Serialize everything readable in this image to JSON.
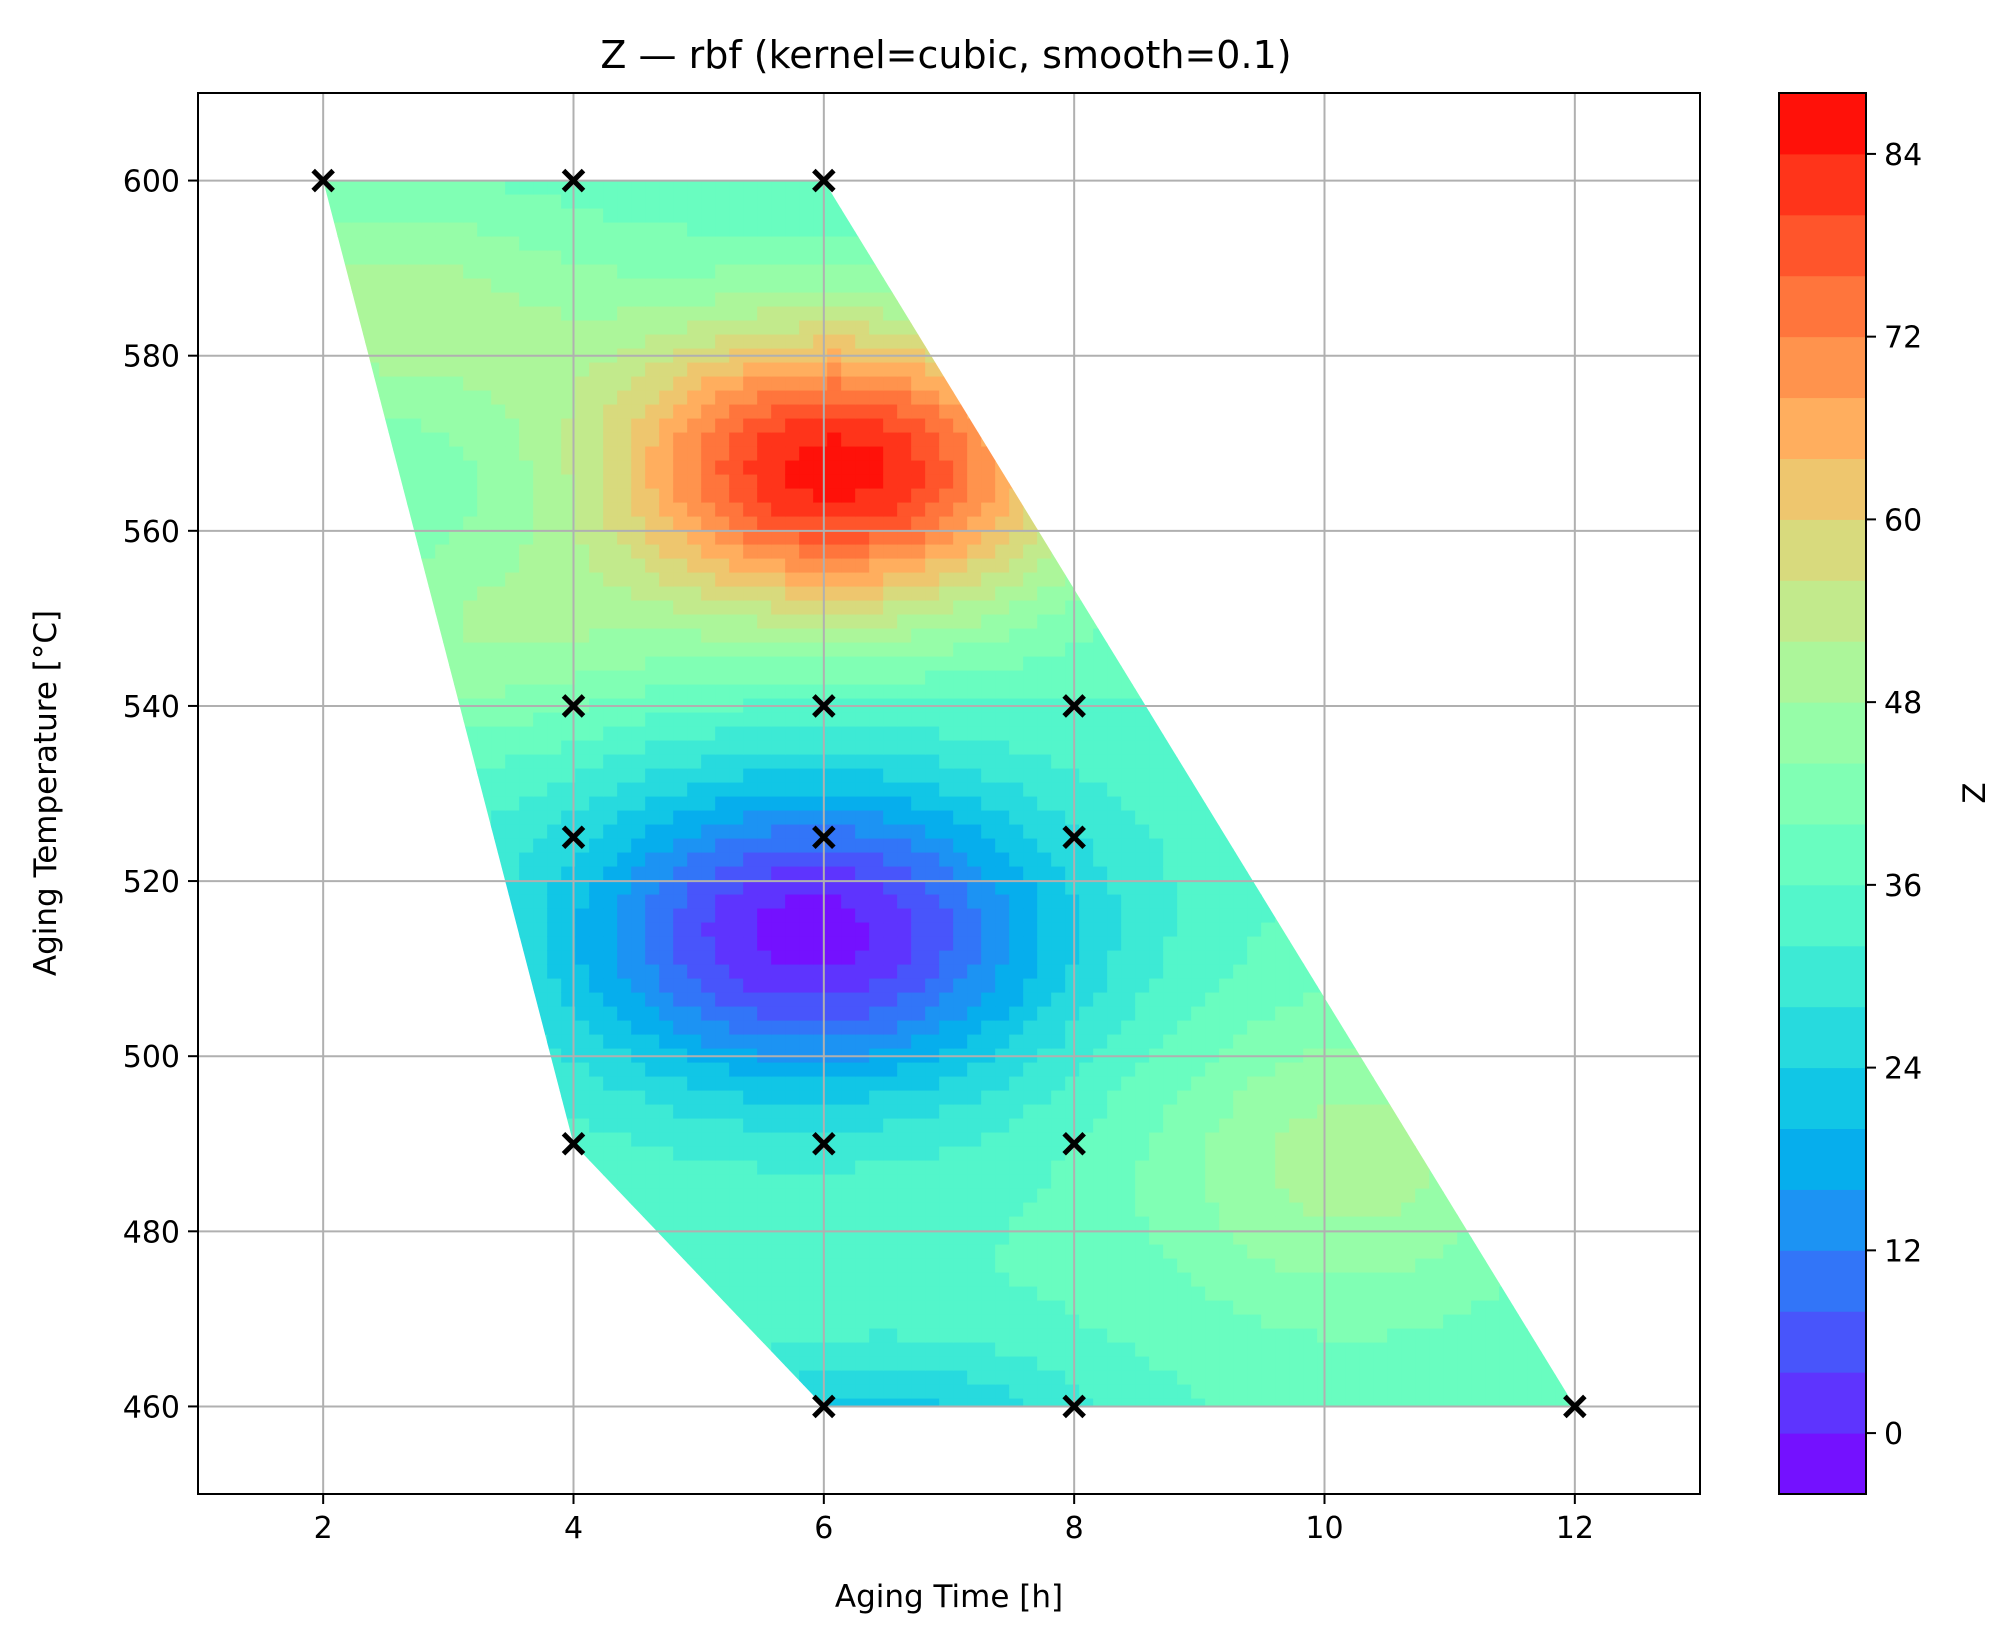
{
  "chart_data": {
    "type": "contour",
    "title": "Z — rbf (kernel=cubic, smooth=0.1)",
    "xlabel": "Aging Time [h]",
    "ylabel": "Aging Temperature [°C]",
    "xlim": [
      1,
      13
    ],
    "ylim": [
      450,
      610
    ],
    "xticks": [
      2,
      4,
      6,
      8,
      10,
      12
    ],
    "yticks": [
      460,
      480,
      500,
      520,
      540,
      560,
      580,
      600
    ],
    "grid": true,
    "colormap": "rainbow",
    "colorbar": {
      "label": "Z",
      "range": [
        -4,
        88
      ],
      "ticks": [
        0,
        12,
        24,
        36,
        48,
        60,
        72,
        84
      ]
    },
    "domain_polygon": [
      [
        2,
        600
      ],
      [
        6,
        600
      ],
      [
        12,
        460
      ],
      [
        6,
        460
      ],
      [
        4,
        490
      ],
      [
        2,
        600
      ]
    ],
    "extrema": [
      {
        "kind": "max",
        "x": 6.1,
        "y": 567,
        "z": 86
      },
      {
        "kind": "min",
        "x": 5.9,
        "y": 514,
        "z": -2
      }
    ],
    "points": [
      {
        "x": 2,
        "y": 600
      },
      {
        "x": 4,
        "y": 600
      },
      {
        "x": 6,
        "y": 600
      },
      {
        "x": 4,
        "y": 540
      },
      {
        "x": 6,
        "y": 540
      },
      {
        "x": 8,
        "y": 540
      },
      {
        "x": 4,
        "y": 525
      },
      {
        "x": 6,
        "y": 525
      },
      {
        "x": 8,
        "y": 525
      },
      {
        "x": 4,
        "y": 490
      },
      {
        "x": 6,
        "y": 490
      },
      {
        "x": 8,
        "y": 490
      },
      {
        "x": 6,
        "y": 460
      },
      {
        "x": 8,
        "y": 460
      },
      {
        "x": 12,
        "y": 460
      }
    ]
  }
}
